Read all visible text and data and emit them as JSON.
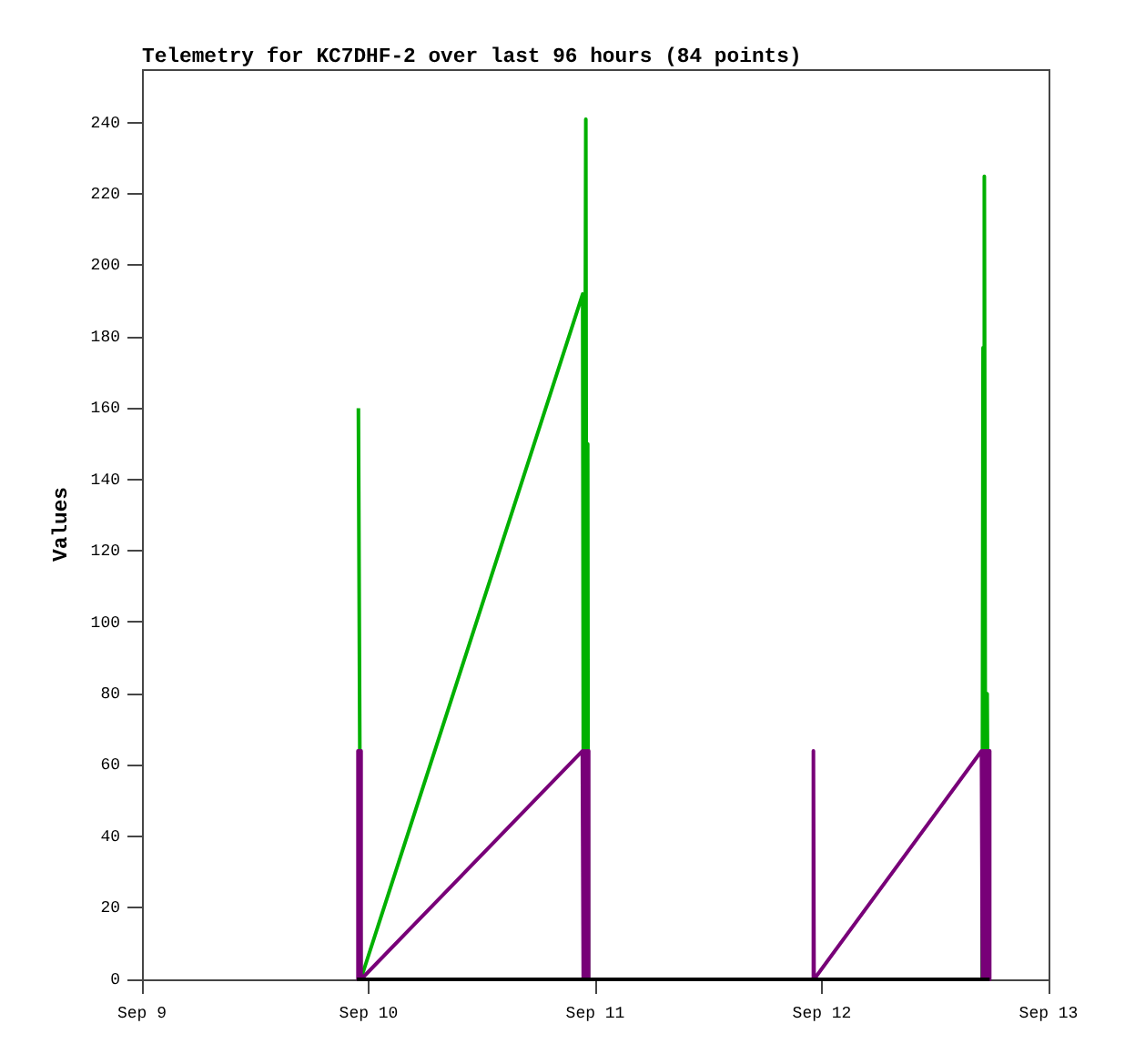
{
  "chart_data": {
    "type": "line",
    "title": "Telemetry for KC7DHF-2 over last 96 hours (84 points)",
    "ylabel": "Values",
    "xlim": [
      "--09-09",
      "--09-13"
    ],
    "xticks": [
      {
        "value": "--09-09",
        "label": "Sep 9"
      },
      {
        "value": "--09-10",
        "label": "Sep 10"
      },
      {
        "value": "--09-11",
        "label": "Sep 11"
      },
      {
        "value": "--09-12",
        "label": "Sep 12"
      },
      {
        "value": "--09-13",
        "label": "Sep 13"
      }
    ],
    "ylim": [
      0,
      255
    ],
    "yticks": [
      0,
      20,
      40,
      60,
      80,
      100,
      120,
      140,
      160,
      180,
      200,
      220,
      240
    ],
    "series": [
      {
        "color": "#00b000",
        "x": [
          "--09-09T22:55",
          "--09-09T23:10",
          "--09-10T22:40",
          "--09-10T22:46",
          "--09-10T23:00",
          "--09-10T23:06",
          "--09-10T23:12",
          "--09-10T23:16",
          "--09-12T16:58",
          "--09-12T17:04",
          "--09-12T17:09",
          "--09-12T17:15",
          "--09-12T17:21",
          "--09-12T17:30",
          "--09-12T17:40"
        ],
        "values": [
          160,
          0,
          192,
          0,
          241,
          0,
          150,
          0,
          0,
          177,
          0,
          225,
          0,
          80,
          0
        ]
      },
      {
        "color": "#780078",
        "x": [
          "--09-09T22:45",
          "--09-09T22:50",
          "--09-09T22:55",
          "--09-09T23:00",
          "--09-09T23:05",
          "--09-09T23:08",
          "--09-09T23:12",
          "--09-10T22:38",
          "--09-10T22:44",
          "--09-10T22:50",
          "--09-10T22:56",
          "--09-10T23:02",
          "--09-10T23:08",
          "--09-10T23:14",
          "--09-10T23:18",
          "--09-11T23:02",
          "--09-11T23:06",
          "--09-11T23:10",
          "--09-12T16:54",
          "--09-12T17:00",
          "--09-12T17:06",
          "--09-12T17:12",
          "--09-12T17:18",
          "--09-12T17:24",
          "--09-12T17:30",
          "--09-12T17:36",
          "--09-12T17:42",
          "--09-12T17:46"
        ],
        "values": [
          0,
          64,
          0,
          64,
          0,
          64,
          0,
          64,
          0,
          64,
          0,
          64,
          0,
          64,
          0,
          0,
          64,
          0,
          64,
          0,
          64,
          0,
          64,
          0,
          64,
          0,
          64,
          0
        ]
      },
      {
        "color": "#000000",
        "x": [
          "--09-09T22:45",
          "--09-10T23:00",
          "--09-11T23:05",
          "--09-12T17:46"
        ],
        "values": [
          0,
          0,
          0,
          0
        ]
      }
    ]
  }
}
